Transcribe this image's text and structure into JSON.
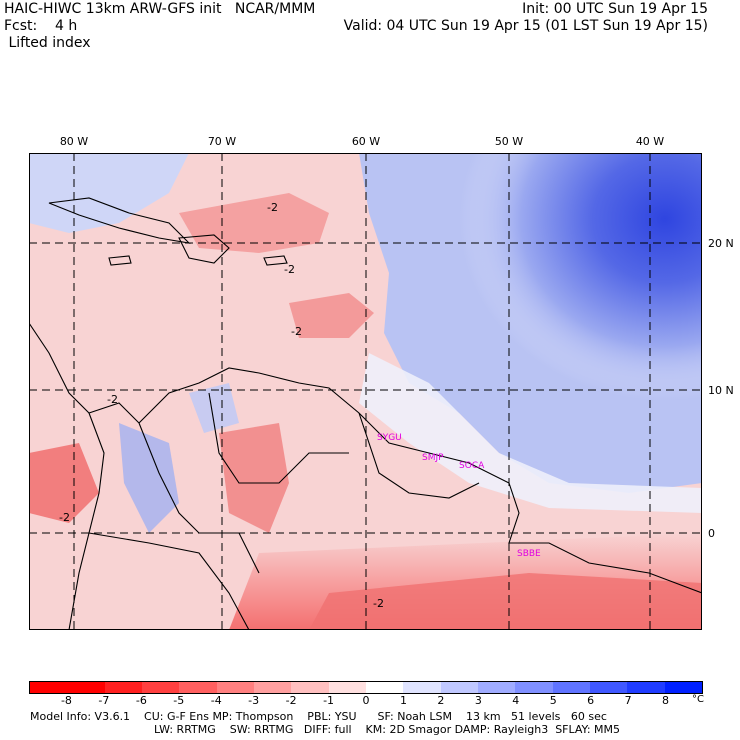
{
  "header": {
    "line1_left": "HAIC-HIWC 13km ARW-GFS init   NCAR/MMM",
    "line1_right": "Init: 00 UTC Sun 19 Apr 15",
    "line2_left": "Fcst:    4 h",
    "line2_right": "Valid: 04 UTC Sun 19 Apr 15 (01 LST Sun 19 Apr 15)",
    "field": " Lifted index"
  },
  "map": {
    "lon_labels": [
      "80 W",
      "70 W",
      "60 W",
      "50 W",
      "40 W"
    ],
    "lat_labels": [
      "20 N",
      "10 N",
      "0"
    ],
    "contour_labels": [
      "-2",
      "-2",
      "-2",
      "-2",
      "-2",
      "-2"
    ],
    "station_labels": [
      "SYGU",
      "SMJP",
      "SOCA",
      "SBBE"
    ],
    "station_color": "#e000e0",
    "colors": {
      "strong_neg": "#ff3b3b",
      "mid_neg": "#f98e8e",
      "weak_neg": "#fcc8c8",
      "neutral": "#f3f0fb",
      "weak_pos": "#c8d0f5",
      "mid_pos": "#8a9bee",
      "strong_pos": "#3e50e0"
    }
  },
  "colorbar": {
    "ticks": [
      "-8",
      "-7",
      "-6",
      "-5",
      "-4",
      "-3",
      "-2",
      "-1",
      "0",
      "1",
      "2",
      "3",
      "4",
      "5",
      "6",
      "7",
      "8"
    ],
    "unit": "°C",
    "colors": [
      "#ff0000",
      "#ff2020",
      "#ff4040",
      "#ff6060",
      "#ff8080",
      "#ffa0a0",
      "#ffc0c0",
      "#ffe0e0",
      "#ffffff",
      "#e0e4ff",
      "#c0c8ff",
      "#a0acff",
      "#8090ff",
      "#6074ff",
      "#4058ff",
      "#203cff",
      "#0020ff"
    ]
  },
  "footer": {
    "line1": "Model Info: V3.6.1    CU: G-F Ens MP: Thompson    PBL: YSU      SF: Noah LSM    13 km   51 levels   60 sec",
    "line2": "LW: RRTMG    SW: RRTMG   DIFF: full    KM: 2D Smagor DAMP: Rayleigh3  SFLAY: MM5"
  }
}
